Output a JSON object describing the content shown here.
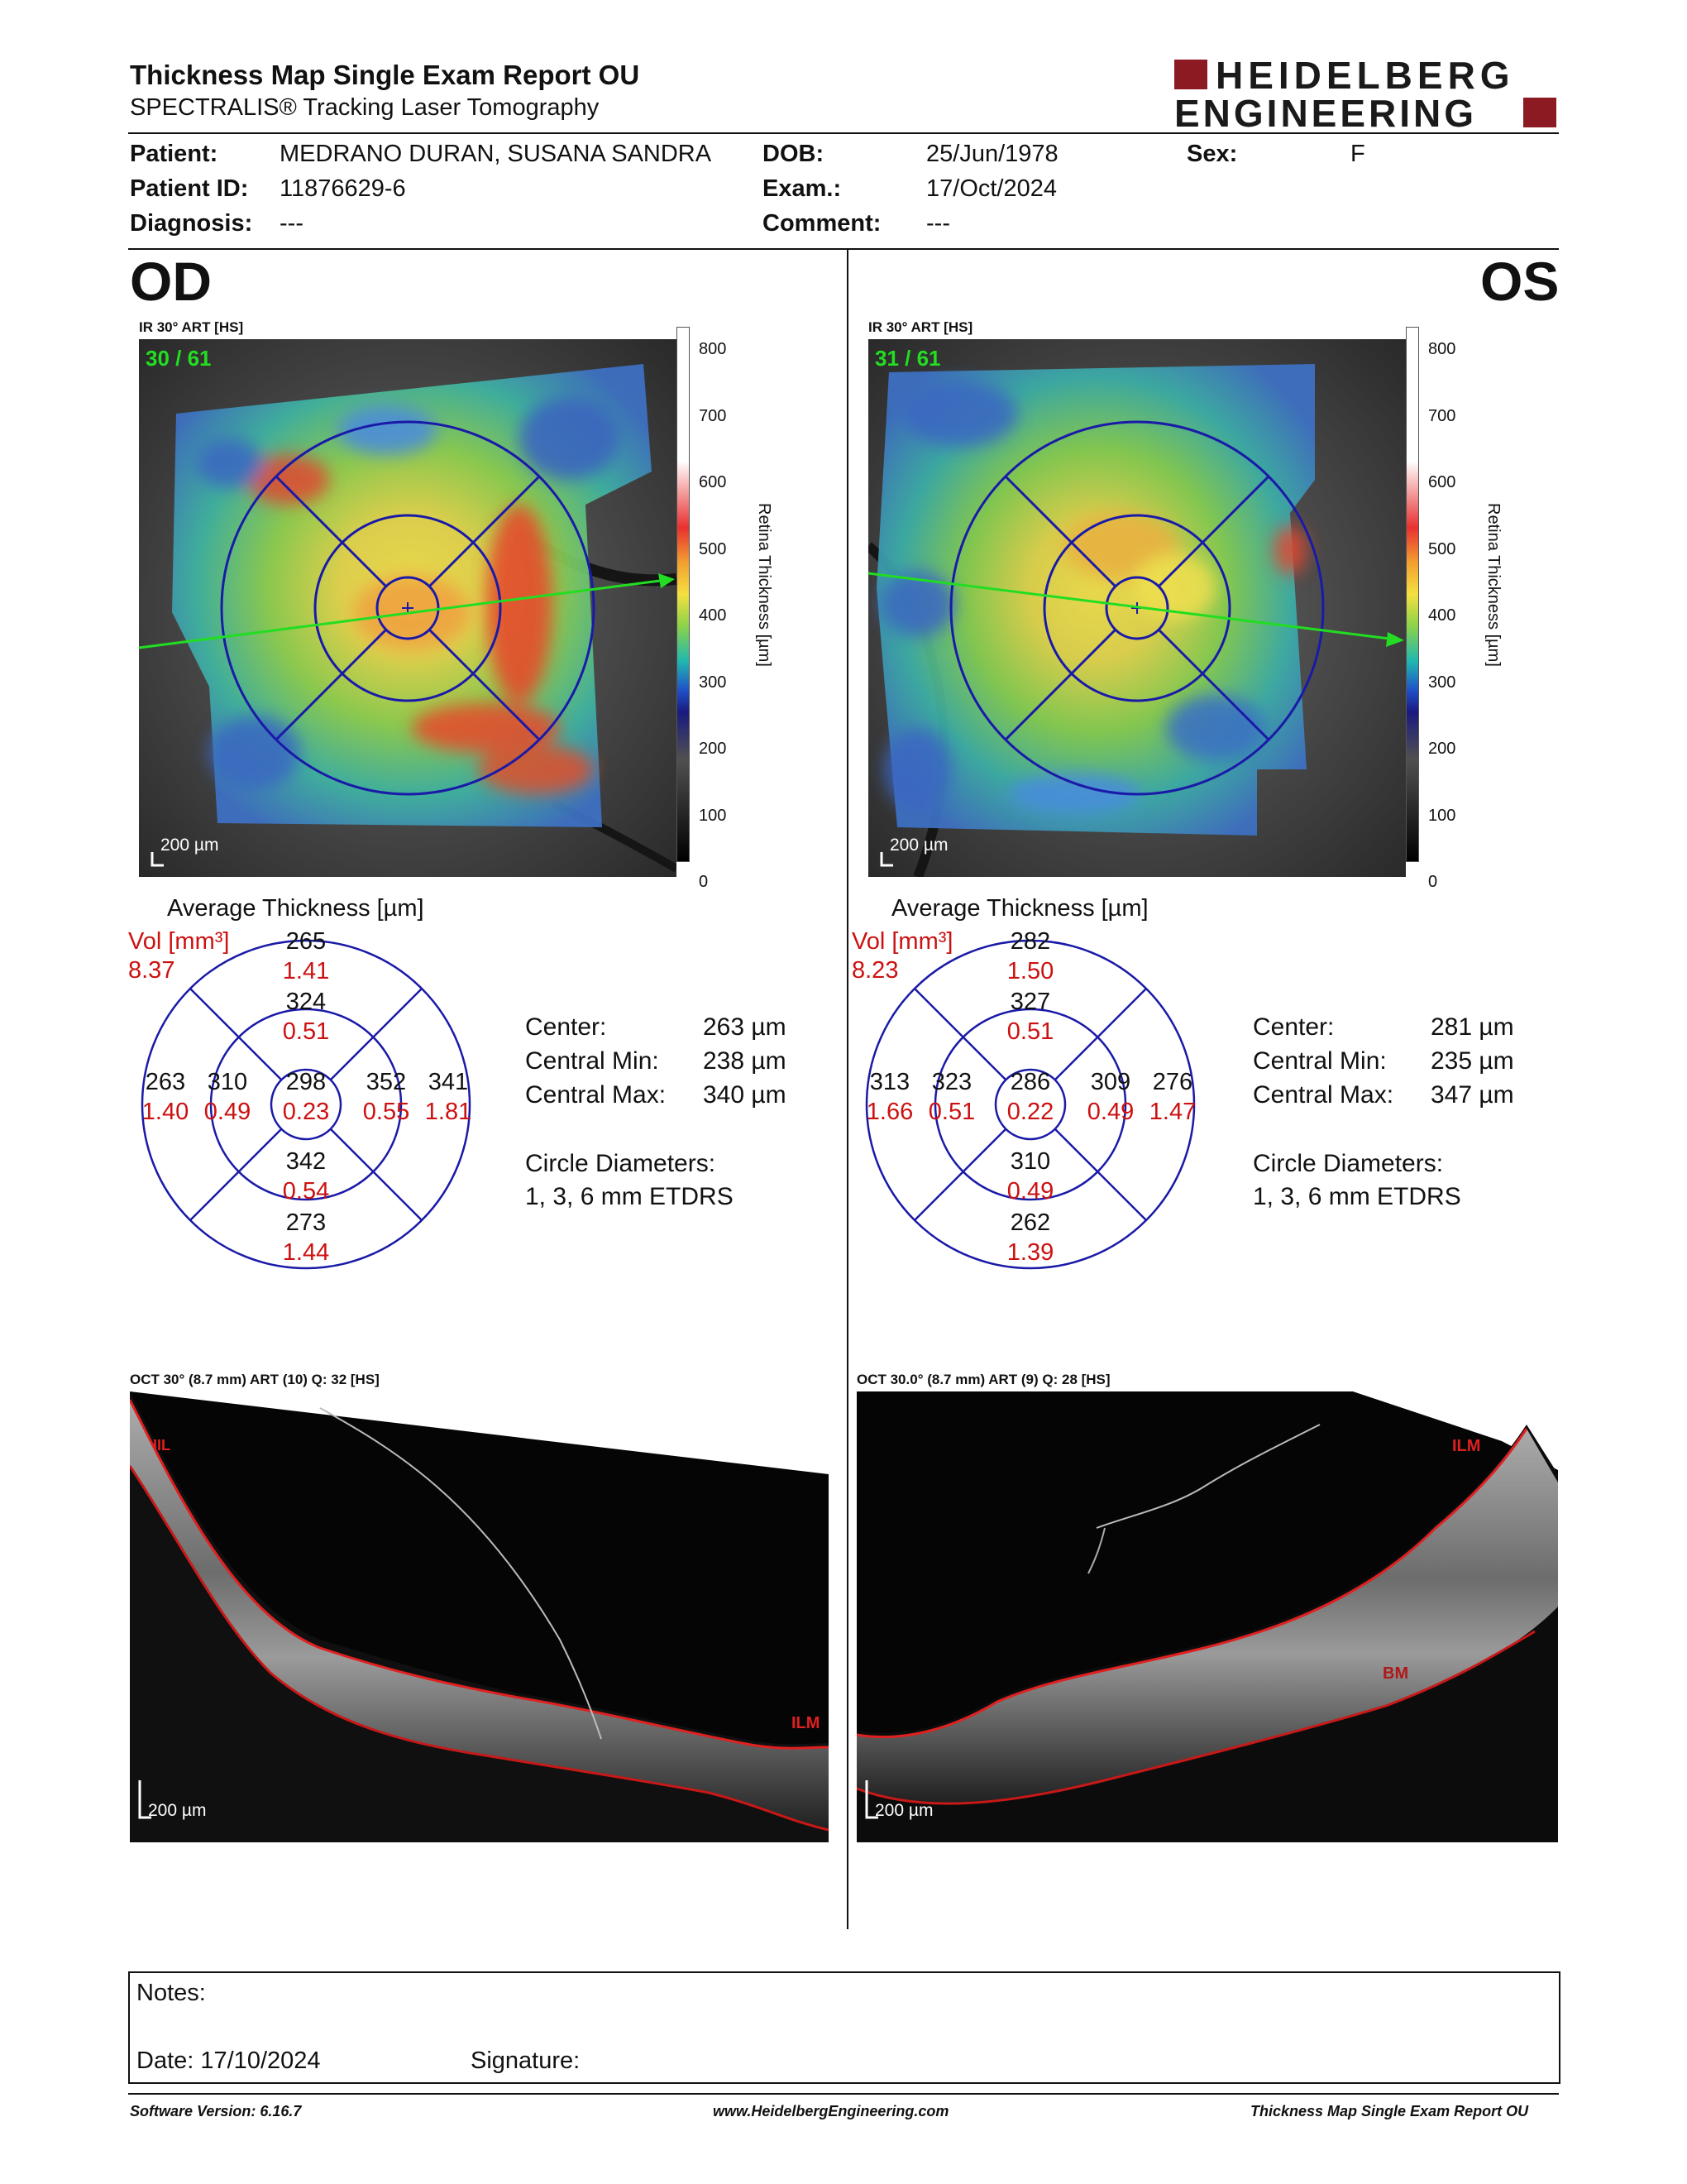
{
  "header": {
    "title": "Thickness Map Single Exam Report OU",
    "subtitle": "SPECTRALIS® Tracking Laser Tomography",
    "logo_line1": "HEIDELBERG",
    "logo_line2": "ENGINEERING"
  },
  "patient": {
    "patient_label": "Patient:",
    "patient_value": "MEDRANO DURAN, SUSANA SANDRA",
    "dob_label": "DOB:",
    "dob_value": "25/Jun/1978",
    "sex_label": "Sex:",
    "sex_value": "F",
    "id_label": "Patient ID:",
    "id_value": "11876629-6",
    "exam_label": "Exam.:",
    "exam_value": "17/Oct/2024",
    "diag_label": "Diagnosis:",
    "diag_value": "---",
    "comment_label": "Comment:",
    "comment_value": "---"
  },
  "od": {
    "eye": "OD",
    "ir_label": "IR 30° ART [HS]",
    "frames": "30 / 61",
    "scale": "200 µm",
    "avg_title": "Average Thickness [µm]",
    "vol_label": "Vol [mm³]",
    "vol_value": "8.37",
    "grid": {
      "center": {
        "t": "298",
        "v": "0.23"
      },
      "inner_sup": {
        "t": "324",
        "v": "0.51"
      },
      "inner_inf": {
        "t": "342",
        "v": "0.54"
      },
      "inner_left": {
        "t": "310",
        "v": "0.49"
      },
      "inner_right": {
        "t": "352",
        "v": "0.55"
      },
      "outer_sup": {
        "t": "265",
        "v": "1.41"
      },
      "outer_inf": {
        "t": "273",
        "v": "1.44"
      },
      "outer_left": {
        "t": "263",
        "v": "1.40"
      },
      "outer_right": {
        "t": "341",
        "v": "1.81"
      }
    },
    "stats": {
      "center_label": "Center:",
      "center_value": "263 µm",
      "min_label": "Central Min:",
      "min_value": "238 µm",
      "max_label": "Central Max:",
      "max_value": "340 µm",
      "diam_label": "Circle Diameters:",
      "diam_value": "1, 3, 6 mm ETDRS"
    },
    "oct_label": "OCT 30° (8.7 mm) ART (10) Q: 32 [HS]",
    "oct_scale": "200 µm",
    "layer_top": "ILM",
    "layer_top_short": "IIL"
  },
  "os": {
    "eye": "OS",
    "ir_label": "IR 30° ART [HS]",
    "frames": "31 / 61",
    "scale": "200 µm",
    "avg_title": "Average Thickness [µm]",
    "vol_label": "Vol [mm³]",
    "vol_value": "8.23",
    "grid": {
      "center": {
        "t": "286",
        "v": "0.22"
      },
      "inner_sup": {
        "t": "327",
        "v": "0.51"
      },
      "inner_inf": {
        "t": "310",
        "v": "0.49"
      },
      "inner_left": {
        "t": "323",
        "v": "0.51"
      },
      "inner_right": {
        "t": "309",
        "v": "0.49"
      },
      "outer_sup": {
        "t": "282",
        "v": "1.50"
      },
      "outer_inf": {
        "t": "262",
        "v": "1.39"
      },
      "outer_left": {
        "t": "313",
        "v": "1.66"
      },
      "outer_right": {
        "t": "276",
        "v": "1.47"
      }
    },
    "stats": {
      "center_label": "Center:",
      "center_value": "281 µm",
      "min_label": "Central Min:",
      "min_value": "235 µm",
      "max_label": "Central Max:",
      "max_value": "347 µm",
      "diam_label": "Circle Diameters:",
      "diam_value": "1, 3, 6 mm ETDRS"
    },
    "oct_label": "OCT 30.0° (8.7 mm) ART (9) Q: 28 [HS]",
    "oct_scale": "200 µm",
    "layer_top": "ILM",
    "layer_bm": "BM"
  },
  "colorbar": {
    "label": "Retina  Thickness [µm]",
    "ticks": [
      "800",
      "700",
      "600",
      "500",
      "400",
      "300",
      "200",
      "100",
      "0"
    ]
  },
  "notes": {
    "notes_label": "Notes:",
    "date_label": "Date: 17/10/2024",
    "signature_label": "Signature:"
  },
  "footer": {
    "software": "Software Version: 6.16.7",
    "url": "www.HeidelbergEngineering.com",
    "report": "Thickness Map Single Exam Report OU"
  },
  "colors": {
    "grid_blue": "#1a1aa8",
    "value_red": "#cc1111",
    "logo_red": "#8b1a22",
    "arrow_green": "#22dd22"
  }
}
